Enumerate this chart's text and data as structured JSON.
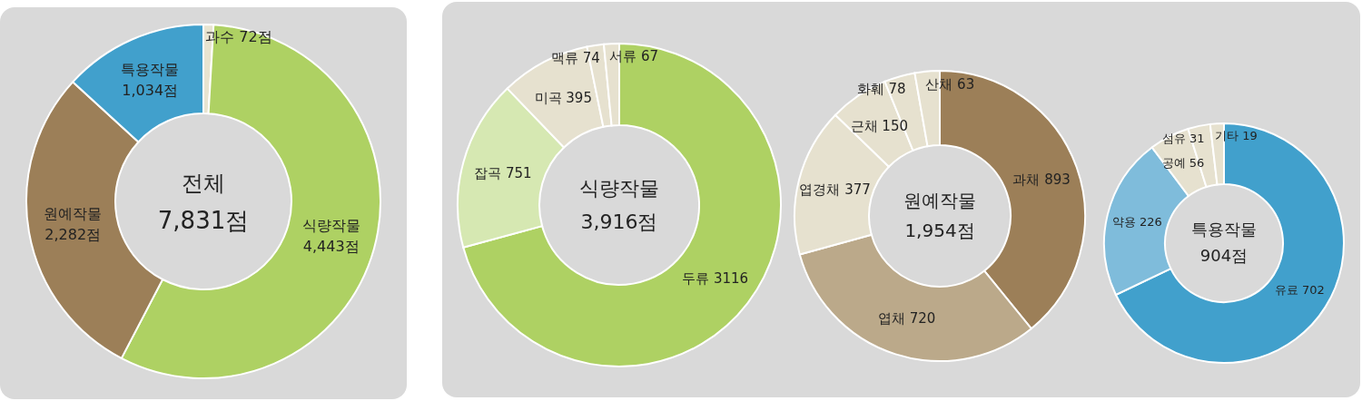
{
  "chart_data": [
    {
      "type": "donut",
      "title": "전체",
      "subtitle": "7,831점",
      "categories": [
        "과수",
        "식량작물",
        "원예작물",
        "특용작물"
      ],
      "values": [
        72,
        4443,
        2282,
        1034
      ],
      "value_labels": [
        "72점",
        "4,443점",
        "2,282점",
        "1,034점"
      ],
      "colors": [
        "#e8e4d0",
        "#aed163",
        "#9c7f58",
        "#41a0cc"
      ]
    },
    {
      "type": "donut",
      "title": "식량작물",
      "subtitle": "3,916점",
      "categories": [
        "두류",
        "잡곡",
        "미곡",
        "맥류",
        "서류"
      ],
      "values": [
        3116,
        751,
        395,
        74,
        67
      ],
      "data_labels": true,
      "colors": [
        "#aed163",
        "#d6e8b2",
        "#e6e1cf",
        "#e6e1cf",
        "#e6e1cf"
      ]
    },
    {
      "type": "donut",
      "title": "원예작물",
      "subtitle": "1,954점",
      "categories": [
        "과채",
        "엽채",
        "엽경채",
        "근채",
        "화훼",
        "산채"
      ],
      "values": [
        893,
        720,
        377,
        150,
        78,
        63
      ],
      "data_labels": true,
      "colors": [
        "#9c7f58",
        "#bba98a",
        "#e6e1cf",
        "#e6e1cf",
        "#e6e1cf",
        "#e6e1cf"
      ]
    },
    {
      "type": "donut",
      "title": "특용작물",
      "subtitle": "904점",
      "categories": [
        "유료",
        "약용",
        "공예",
        "섬유",
        "기타"
      ],
      "values": [
        702,
        226,
        56,
        31,
        19
      ],
      "data_labels": true,
      "colors": [
        "#41a0cc",
        "#7fbcdb",
        "#e6e1cf",
        "#e6e1cf",
        "#e6e1cf"
      ]
    }
  ]
}
